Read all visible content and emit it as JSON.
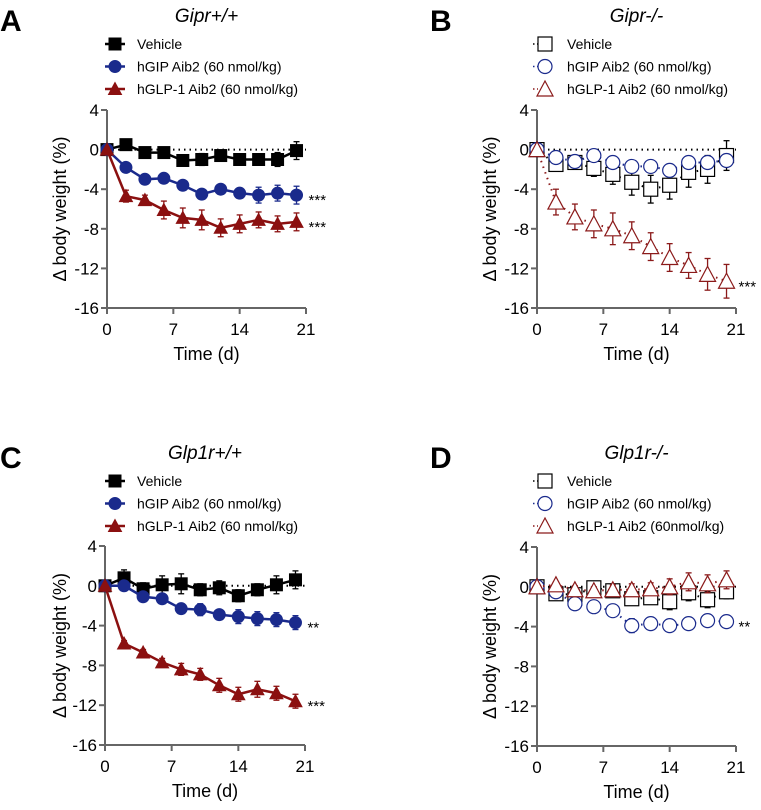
{
  "chart_data": [
    {
      "type": "line",
      "panel_letter": "A",
      "title": "Gipr+/+",
      "xlabel": "Time (d)",
      "ylabel": "Δ body weight (%)",
      "xlim": [
        0,
        21
      ],
      "ylim": [
        -16,
        4
      ],
      "xticks": [
        "0",
        "7",
        "14",
        "21"
      ],
      "yticks": [
        "4",
        "0",
        "-4",
        "-8",
        "-12",
        "-16"
      ],
      "reference_line": 0,
      "legend_position": "top",
      "x": [
        0,
        2,
        4,
        6,
        8,
        10,
        12,
        14,
        16,
        18,
        20
      ],
      "series": [
        {
          "name": "Vehicle",
          "color": "#000000",
          "marker": "square",
          "filled": true,
          "line": "solid",
          "values": [
            0,
            0.5,
            -0.3,
            -0.3,
            -1.1,
            -1.0,
            -0.6,
            -1.0,
            -1.0,
            -1.0,
            -0.1
          ],
          "errors": [
            0,
            0.5,
            0.3,
            0.3,
            0.4,
            0.6,
            0.5,
            0.5,
            0.4,
            0.7,
            0.9
          ],
          "significance": ""
        },
        {
          "name": "hGIP Aib2 (60 nmol/kg)",
          "color": "#1a2a8c",
          "marker": "circle",
          "filled": true,
          "line": "solid",
          "values": [
            0,
            -1.8,
            -3.0,
            -2.9,
            -3.6,
            -4.5,
            -4.0,
            -4.4,
            -4.6,
            -4.4,
            -4.6
          ],
          "errors": [
            0,
            0.3,
            0.3,
            0.3,
            0.4,
            0.4,
            0.5,
            0.5,
            0.8,
            0.8,
            0.9
          ],
          "significance": "***"
        },
        {
          "name": "hGLP-1 Aib2 (60 nmol/kg)",
          "color": "#8b1010",
          "marker": "triangle",
          "filled": true,
          "line": "solid",
          "values": [
            0,
            -4.7,
            -5.1,
            -6.1,
            -6.9,
            -7.1,
            -7.9,
            -7.5,
            -7.1,
            -7.5,
            -7.3
          ],
          "errors": [
            0,
            0.6,
            0.5,
            0.9,
            1.0,
            1.0,
            0.9,
            0.9,
            0.8,
            0.8,
            0.9
          ],
          "significance": "***"
        }
      ]
    },
    {
      "type": "line",
      "panel_letter": "B",
      "title": "Gipr-/-",
      "xlabel": "Time (d)",
      "ylabel": "Δ body weight (%)",
      "xlim": [
        0,
        21
      ],
      "ylim": [
        -16,
        4
      ],
      "xticks": [
        "0",
        "7",
        "14",
        "21"
      ],
      "yticks": [
        "4",
        "0",
        "-4",
        "-8",
        "-12",
        "-16"
      ],
      "reference_line": 0,
      "legend_position": "top",
      "x": [
        0,
        2,
        4,
        6,
        8,
        10,
        12,
        14,
        16,
        18,
        20
      ],
      "series": [
        {
          "name": "Vehicle",
          "color": "#000000",
          "marker": "square",
          "filled": false,
          "line": "dotted",
          "values": [
            0,
            -1.5,
            -1.3,
            -1.9,
            -2.5,
            -3.3,
            -4.0,
            -3.6,
            -2.3,
            -2.0,
            -0.6
          ],
          "errors": [
            0,
            0.4,
            0.3,
            0.8,
            1.0,
            1.3,
            1.4,
            1.4,
            1.5,
            1.4,
            1.5
          ],
          "significance": ""
        },
        {
          "name": "hGIP Aib2 (60 nmol/kg)",
          "color": "#1a2a8c",
          "marker": "circle",
          "filled": false,
          "line": "dotted",
          "values": [
            0,
            -0.8,
            -1.2,
            -0.6,
            -1.3,
            -1.7,
            -1.7,
            -2.1,
            -1.3,
            -1.3,
            -1.1
          ],
          "errors": [
            0,
            0.3,
            0.3,
            0.4,
            0.4,
            0.4,
            0.4,
            0.6,
            0.5,
            0.6,
            0.6
          ],
          "significance": ""
        },
        {
          "name": "hGLP-1 Aib2 (60 nmol/kg)",
          "color": "#8b1a1a",
          "marker": "triangle",
          "filled": false,
          "line": "dotted",
          "values": [
            0,
            -5.3,
            -6.8,
            -7.5,
            -8.0,
            -8.7,
            -9.8,
            -10.9,
            -11.7,
            -12.6,
            -13.3
          ],
          "errors": [
            0,
            1.3,
            1.3,
            1.4,
            1.6,
            1.4,
            1.4,
            1.4,
            1.3,
            1.6,
            1.7
          ],
          "significance": "***"
        }
      ]
    },
    {
      "type": "line",
      "panel_letter": "C",
      "title": "Glp1r+/+",
      "xlabel": "Time (d)",
      "ylabel": "Δ body weight (%)",
      "xlim": [
        0,
        21
      ],
      "ylim": [
        -16,
        4
      ],
      "xticks": [
        "0",
        "7",
        "14",
        "21"
      ],
      "yticks": [
        "4",
        "0",
        "-4",
        "-8",
        "-12",
        "-16"
      ],
      "reference_line": 0,
      "legend_position": "top",
      "x": [
        0,
        2,
        4,
        6,
        8,
        10,
        12,
        14,
        16,
        18,
        20
      ],
      "series": [
        {
          "name": "Vehicle",
          "color": "#000000",
          "marker": "square",
          "filled": true,
          "line": "solid",
          "values": [
            0,
            0.8,
            -0.3,
            0.1,
            0.2,
            -0.4,
            -0.2,
            -1.0,
            -0.4,
            0.1,
            0.6
          ],
          "errors": [
            0,
            0.8,
            0.6,
            0.9,
            1.0,
            0.6,
            0.7,
            0.6,
            0.6,
            0.9,
            0.9
          ],
          "significance": ""
        },
        {
          "name": "hGIP Aib2 (60 nmol/kg)",
          "color": "#1a2a8c",
          "marker": "circle",
          "filled": true,
          "line": "solid",
          "values": [
            0,
            0,
            -1.1,
            -1.3,
            -2.3,
            -2.4,
            -2.9,
            -3.1,
            -3.3,
            -3.4,
            -3.7
          ],
          "errors": [
            0,
            0.2,
            0.3,
            0.3,
            0.4,
            0.6,
            0.5,
            0.7,
            0.7,
            0.7,
            0.7
          ],
          "significance": "**"
        },
        {
          "name": "hGLP-1 Aib2 (60 nmol/kg)",
          "color": "#8b1010",
          "marker": "triangle",
          "filled": true,
          "line": "solid",
          "values": [
            0,
            -5.8,
            -6.7,
            -7.7,
            -8.4,
            -8.9,
            -10.0,
            -10.9,
            -10.4,
            -10.8,
            -11.6
          ],
          "errors": [
            0,
            0.3,
            0.3,
            0.4,
            0.6,
            0.6,
            0.7,
            0.7,
            0.8,
            0.7,
            0.7
          ],
          "significance": "***"
        }
      ]
    },
    {
      "type": "line",
      "panel_letter": "D",
      "title": "Glp1r-/-",
      "xlabel": "Time (d)",
      "ylabel": "Δ body weight (%)",
      "xlim": [
        0,
        21
      ],
      "ylim": [
        -16,
        4
      ],
      "xticks": [
        "0",
        "7",
        "14",
        "21"
      ],
      "yticks": [
        "4",
        "0",
        "-4",
        "-8",
        "-12",
        "-16"
      ],
      "reference_line": 0,
      "legend_position": "top",
      "x": [
        0,
        2,
        4,
        6,
        8,
        10,
        12,
        14,
        16,
        18,
        20
      ],
      "series": [
        {
          "name": "Vehicle",
          "color": "#000000",
          "marker": "square",
          "filled": false,
          "line": "dotted",
          "values": [
            0,
            -0.7,
            -0.8,
            -0.1,
            -0.4,
            -1.2,
            -1.1,
            -1.5,
            -0.6,
            -1.3,
            -0.5
          ],
          "errors": [
            0,
            0.3,
            0.4,
            0.3,
            0.4,
            0.6,
            0.5,
            0.8,
            0.8,
            0.8,
            0.7
          ],
          "significance": ""
        },
        {
          "name": "hGIP Aib2 (60 nmol/kg)",
          "color": "#1a2a8c",
          "marker": "circle",
          "filled": false,
          "line": "dotted",
          "values": [
            0,
            -0.5,
            -1.7,
            -2.0,
            -2.4,
            -3.9,
            -3.7,
            -3.9,
            -3.7,
            -3.4,
            -3.5
          ],
          "errors": [
            0,
            0.3,
            0.4,
            0.6,
            0.6,
            0.7,
            0.4,
            0.4,
            0.4,
            0.5,
            0.4
          ],
          "significance": "**"
        },
        {
          "name": "hGLP-1 Aib2 (60nmol/kg)",
          "color": "#8b1a1a",
          "marker": "triangle",
          "filled": false,
          "line": "dotted",
          "values": [
            0,
            0.2,
            -0.3,
            -0.4,
            -0.3,
            -0.3,
            -0.2,
            0,
            0.5,
            0.3,
            0.7
          ],
          "errors": [
            0,
            0.3,
            0.4,
            0.4,
            0.5,
            0.6,
            0.6,
            0.8,
            0.9,
            0.9,
            0.9
          ],
          "significance": ""
        }
      ]
    }
  ]
}
